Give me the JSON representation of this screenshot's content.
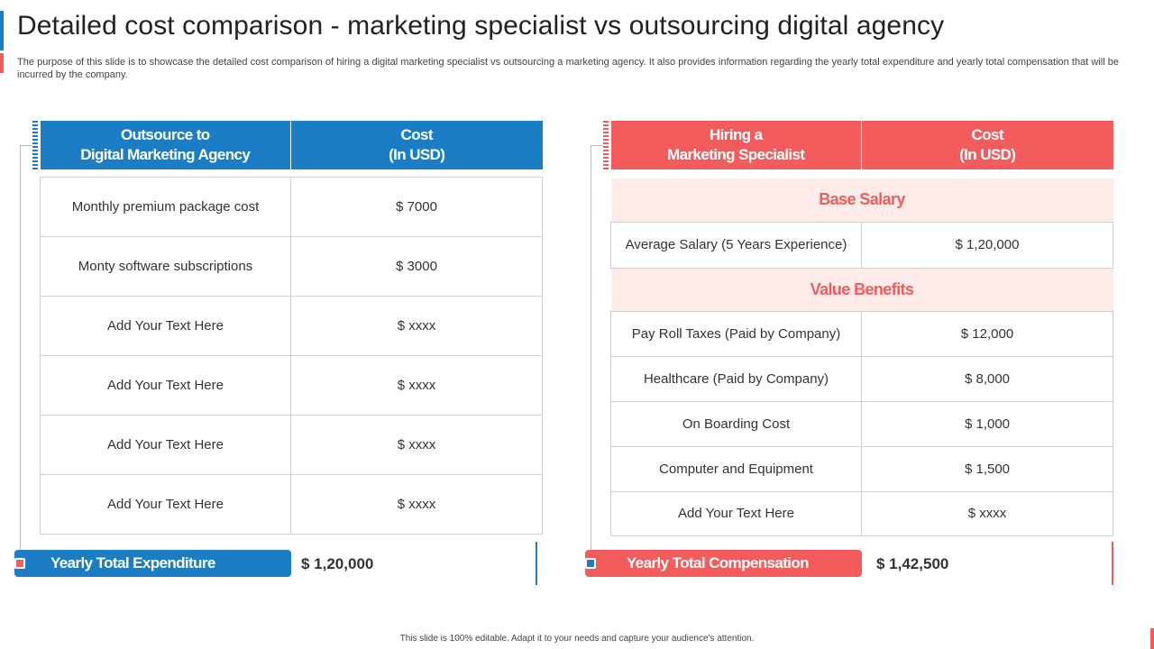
{
  "title": "Detailed cost comparison - marketing specialist vs outsourcing digital agency",
  "subtitle": "The purpose of this slide is to showcase the detailed cost comparison of hiring a digital marketing specialist vs outsourcing a marketing agency. It also provides information regarding the yearly total expenditure and yearly total compensation that will be incurred by the company.",
  "left_table": {
    "header_col1_line1": "Outsource to",
    "header_col1_line2": "Digital Marketing Agency",
    "header_col2_line1": "Cost",
    "header_col2_line2": "(In USD)",
    "rows": [
      {
        "item": "Monthly premium package cost",
        "cost": "$ 7000"
      },
      {
        "item": "Monty software subscriptions",
        "cost": "$ 3000"
      },
      {
        "item": "Add Your Text Here",
        "cost": "$ xxxx"
      },
      {
        "item": "Add Your Text Here",
        "cost": "$ xxxx"
      },
      {
        "item": "Add Your Text Here",
        "cost": "$ xxxx"
      },
      {
        "item": "Add Your Text Here",
        "cost": "$ xxxx"
      }
    ],
    "total_label": "Yearly Total Expenditure",
    "total_value": "$ 1,20,000"
  },
  "right_table": {
    "header_col1_line1": "Hiring a",
    "header_col1_line2": "Marketing Specialist",
    "header_col2_line1": "Cost",
    "header_col2_line2": "(In USD)",
    "section1": "Base Salary",
    "section1_rows": [
      {
        "item": "Average Salary (5 Years Experience)",
        "cost": "$ 1,20,000"
      }
    ],
    "section2": "Value Benefits",
    "section2_rows": [
      {
        "item": "Pay Roll Taxes (Paid by Company)",
        "cost": "$ 12,000"
      },
      {
        "item": "Healthcare (Paid by Company)",
        "cost": "$ 8,000"
      },
      {
        "item": "On Boarding Cost",
        "cost": "$ 1,000"
      },
      {
        "item": "Computer and Equipment",
        "cost": "$ 1,500"
      },
      {
        "item": "Add Your Text Here",
        "cost": "$ xxxx"
      }
    ],
    "total_label": "Yearly Total Compensation",
    "total_value": "$ 1,42,500"
  },
  "footer": "This slide is 100% editable. Adapt it to your needs and capture your audience's attention.",
  "colors": {
    "blue": "#1b7ec4",
    "red": "#f25c5c",
    "section_bg": "#fdecea"
  }
}
